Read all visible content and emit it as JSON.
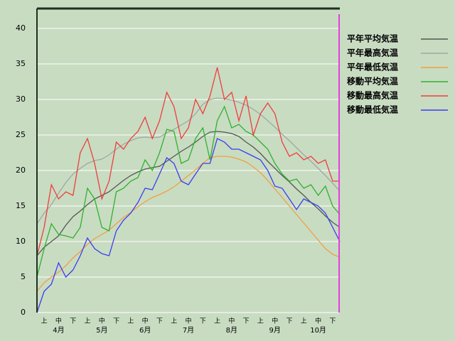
{
  "chart_data": {
    "type": "line",
    "categories": [
      null,
      "上",
      null,
      "中",
      null,
      "下",
      null,
      "上",
      null,
      "中",
      null,
      "下",
      null,
      "上",
      null,
      "中",
      null,
      "下",
      null,
      "上",
      null,
      "中",
      null,
      "下",
      null,
      "上",
      null,
      "中",
      null,
      "下",
      null,
      "上",
      null,
      "中",
      null,
      "下",
      null,
      "上",
      null,
      "中",
      null,
      "下",
      null
    ],
    "month_labels": [
      "4月",
      "5月",
      "6月",
      "7月",
      "8月",
      "9月",
      "10月"
    ],
    "ylim": [
      0,
      42.8
    ],
    "yticks": [
      0,
      5,
      10,
      15,
      20,
      25,
      30,
      35,
      40
    ],
    "grid": true,
    "legend": "right",
    "series": [
      {
        "name": "平年平均気温",
        "color": "#505a50",
        "values": [
          8,
          9.2,
          10,
          10.8,
          12.3,
          13.5,
          14.3,
          15.2,
          16,
          16.5,
          17,
          17.8,
          18.6,
          19.3,
          19.8,
          20.2,
          20.4,
          20.6,
          21.3,
          22,
          22.7,
          23.3,
          24,
          24.8,
          25.4,
          25.5,
          25.4,
          25.2,
          24.8,
          24,
          23.3,
          22.4,
          21.3,
          20.3,
          19.3,
          18.4,
          17.4,
          16.5,
          15.5,
          14.6,
          13.6,
          12.7,
          12
        ]
      },
      {
        "name": "平年最高気温",
        "color": "#a0a8a0",
        "values": [
          12.5,
          14,
          15.2,
          16.8,
          18.3,
          19.5,
          20.3,
          21,
          21.4,
          21.6,
          22.2,
          23,
          23.7,
          24.2,
          24.6,
          24.7,
          24.6,
          24.7,
          25.3,
          25.8,
          26.4,
          27,
          28,
          29.3,
          30,
          30.2,
          30.1,
          29.9,
          29.6,
          29.2,
          28.6,
          27.9,
          27,
          26.1,
          25.1,
          24.2,
          23.2,
          22.2,
          21.3,
          20.3,
          19.3,
          18.2,
          17.1
        ]
      },
      {
        "name": "平年最低気温",
        "color": "#f0a040",
        "values": [
          3,
          4.2,
          5,
          5.7,
          6.6,
          7.7,
          8.6,
          9.6,
          10.4,
          11,
          11.6,
          12.5,
          13.4,
          14.1,
          14.9,
          15.6,
          16.2,
          16.6,
          17.1,
          17.7,
          18.5,
          19.3,
          20.1,
          21,
          21.8,
          22,
          22,
          21.9,
          21.6,
          21.2,
          20.5,
          19.7,
          18.6,
          17.4,
          16.2,
          15,
          13.8,
          12.6,
          11.4,
          10.2,
          9,
          8.2,
          7.8
        ]
      },
      {
        "name": "移動平均気温",
        "color": "#30b030",
        "values": [
          5,
          9,
          12.5,
          11,
          10.8,
          10.5,
          12,
          17.5,
          16,
          12,
          11.5,
          17,
          17.5,
          18.5,
          19,
          21.5,
          20,
          22.5,
          25.8,
          25.5,
          21,
          21.5,
          24.5,
          26,
          21.5,
          27,
          29,
          26,
          26.5,
          25.5,
          25,
          24,
          23,
          21,
          19.5,
          18.5,
          18.8,
          17.5,
          18,
          16.5,
          17.8,
          15,
          13.8
        ]
      },
      {
        "name": "移動最高気温",
        "color": "#f03c3c",
        "values": [
          8,
          12,
          18,
          16,
          17,
          16.5,
          22.5,
          24.5,
          21,
          16,
          18.5,
          24,
          23,
          24.5,
          25.5,
          27.5,
          24.5,
          27,
          31,
          29,
          24.5,
          26,
          30,
          28,
          30.5,
          34.5,
          30,
          31,
          27,
          30.5,
          25,
          28,
          29.5,
          28,
          24,
          22,
          22.5,
          21.5,
          22,
          21,
          21.5,
          18.5,
          18.5
        ]
      },
      {
        "name": "移動最低気温",
        "color": "#3c3cf0",
        "values": [
          0,
          3,
          4,
          7,
          5,
          6,
          8,
          10.5,
          9,
          8.3,
          8,
          11.5,
          13,
          14,
          15.5,
          17.5,
          17.3,
          19.5,
          21.8,
          21,
          18.5,
          18,
          19.5,
          21,
          21,
          24.5,
          24,
          23,
          23,
          22.5,
          22,
          21.5,
          20,
          17.8,
          17.5,
          16,
          14.5,
          16,
          15.5,
          15,
          14,
          12,
          10
        ]
      }
    ]
  }
}
